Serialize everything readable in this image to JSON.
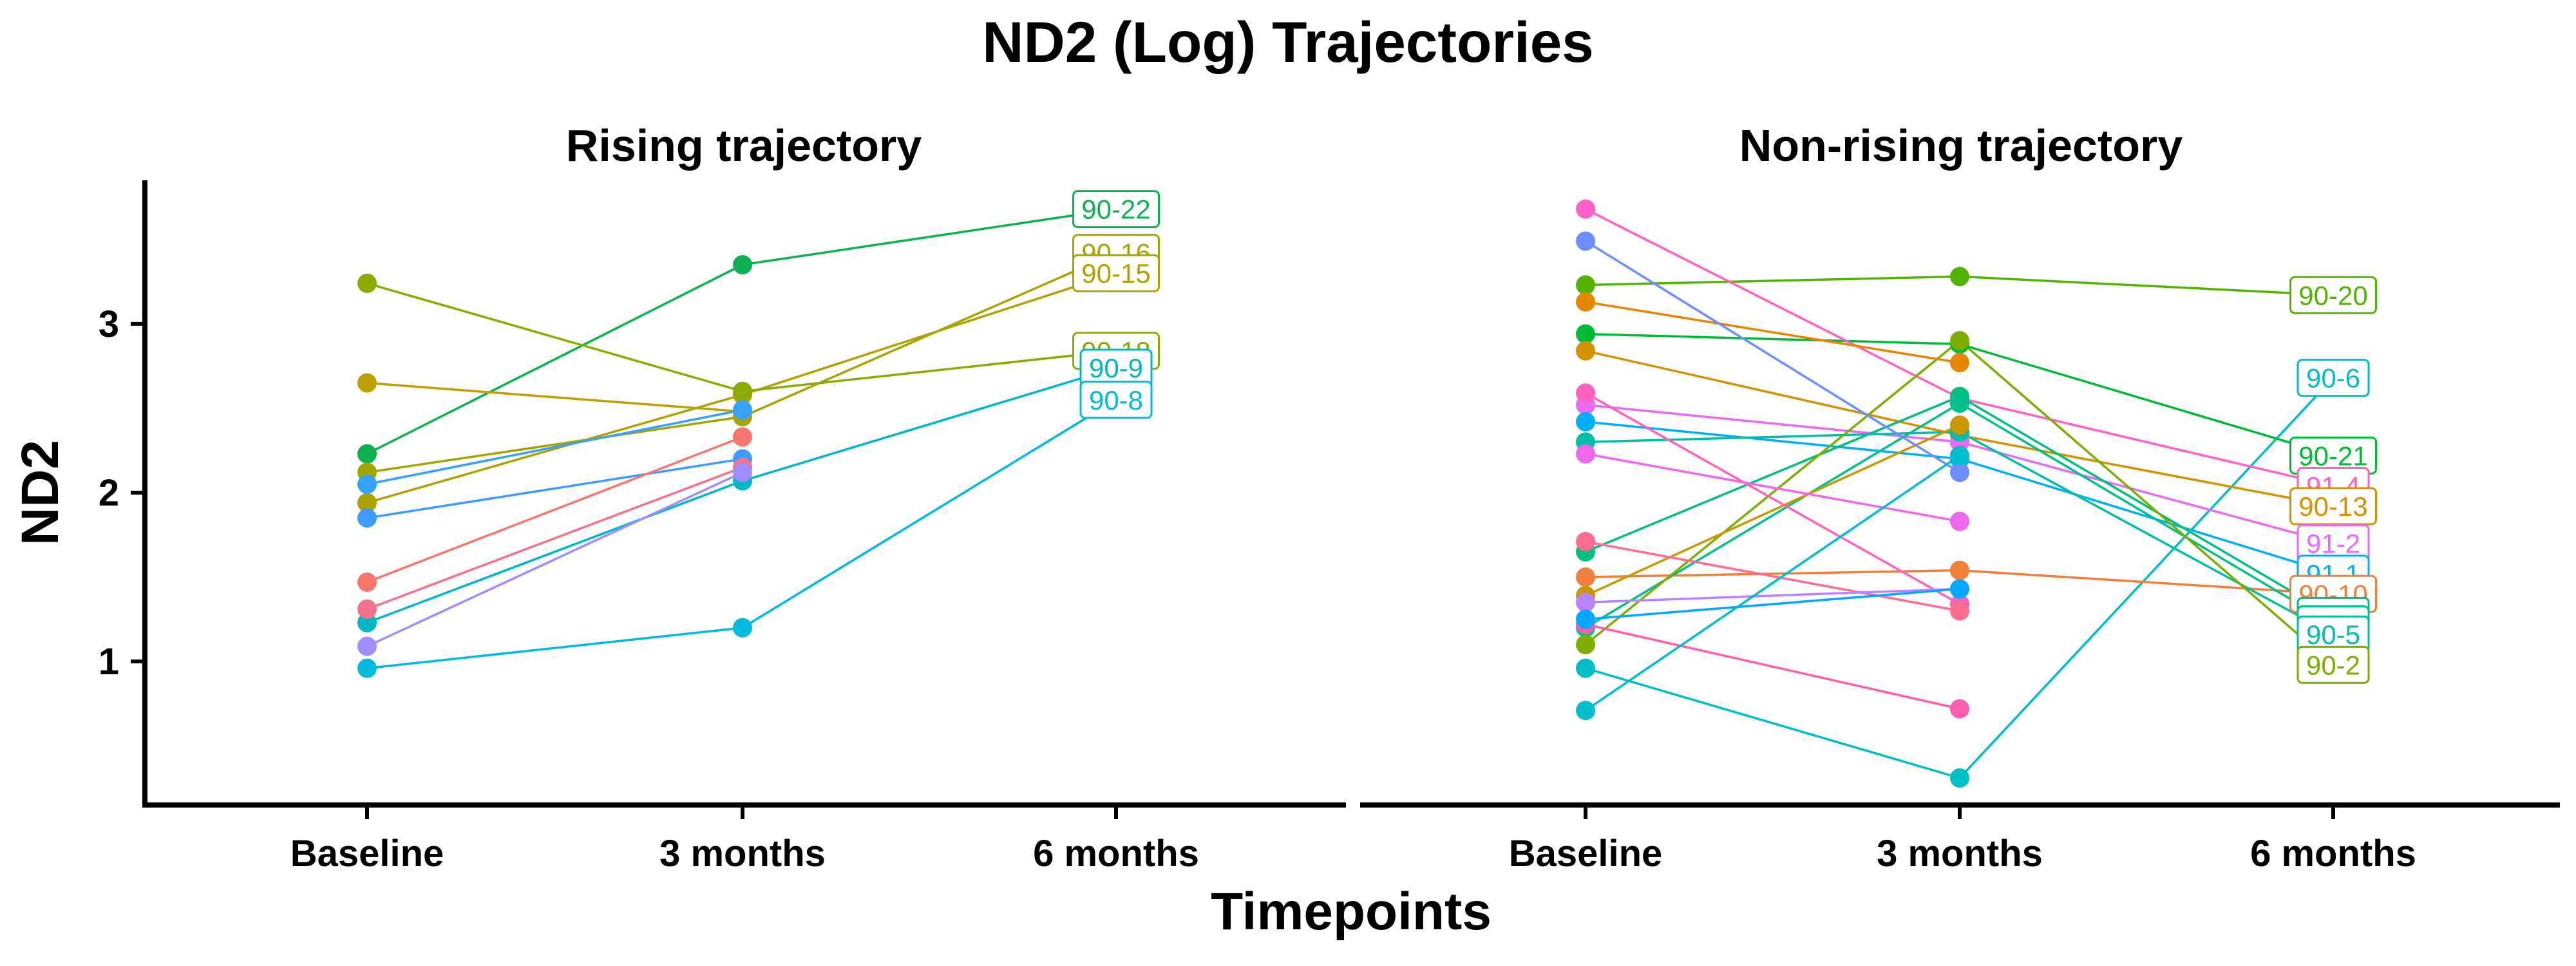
{
  "title": "ND2 (Log) Trajectories",
  "ylabel": "ND2",
  "xlabel": "Timepoints",
  "chart_data": [
    {
      "type": "line",
      "title": "Rising trajectory",
      "x": [
        "Baseline",
        "3 months",
        "6 months"
      ],
      "ylim": [
        0.15,
        3.85
      ],
      "yticks": [
        1,
        2,
        3
      ],
      "grid": false,
      "series": [
        {
          "name": "90-22",
          "color": "#0CB252",
          "values": [
            2.23,
            3.35,
            3.68
          ]
        },
        {
          "name": "90-16",
          "color": "#A3A500",
          "values": [
            2.12,
            2.45,
            3.42
          ]
        },
        {
          "name": "90-15",
          "color": "#AEA200",
          "values": [
            1.94,
            2.58,
            3.3
          ]
        },
        {
          "name": "90-18",
          "color": "#8BAB00",
          "values": [
            3.24,
            2.6,
            2.84
          ]
        },
        {
          "name": "90-9",
          "color": "#00B7C4",
          "values": [
            1.23,
            2.07,
            2.74
          ]
        },
        {
          "name": "90-8",
          "color": "#00BBDB",
          "values": [
            0.96,
            1.2,
            2.55
          ]
        },
        {
          "name": null,
          "color": "#BFA000",
          "values": [
            2.65,
            2.48,
            null
          ]
        },
        {
          "name": null,
          "color": "#35A2FF",
          "values": [
            2.05,
            2.49,
            null
          ]
        },
        {
          "name": null,
          "color": "#3D9BFF",
          "values": [
            1.85,
            2.2,
            null
          ]
        },
        {
          "name": null,
          "color": "#F8766D",
          "values": [
            1.47,
            2.33,
            null
          ]
        },
        {
          "name": null,
          "color": "#F4728B",
          "values": [
            1.31,
            2.15,
            null
          ]
        },
        {
          "name": null,
          "color": "#9F8CFF",
          "values": [
            1.09,
            2.12,
            null
          ]
        }
      ]
    },
    {
      "type": "line",
      "title": "Non-rising trajectory",
      "x": [
        "Baseline",
        "3 months",
        "6 months"
      ],
      "ylim": [
        0.15,
        3.85
      ],
      "yticks": [
        1,
        2,
        3
      ],
      "grid": false,
      "series": [
        {
          "name": "90-20",
          "color": "#53B400",
          "values": [
            3.23,
            3.28,
            3.17
          ]
        },
        {
          "name": "90-6",
          "color": "#00BFC4",
          "values": [
            0.96,
            0.31,
            2.68
          ]
        },
        {
          "name": "90-21",
          "color": "#00BA38",
          "values": [
            2.94,
            2.88,
            2.22
          ]
        },
        {
          "name": "91-4",
          "color": "#FF61C9",
          "values": [
            3.68,
            2.56,
            2.04
          ]
        },
        {
          "name": "90-13",
          "color": "#D39200",
          "values": [
            2.84,
            2.34,
            1.92
          ]
        },
        {
          "name": "91-2",
          "color": "#E76BF3",
          "values": [
            2.52,
            2.3,
            1.7
          ]
        },
        {
          "name": "91-1",
          "color": "#00B0F6",
          "values": [
            2.42,
            2.2,
            1.52
          ]
        },
        {
          "name": "90-10",
          "color": "#F07F3A",
          "values": [
            1.5,
            1.54,
            1.4
          ]
        },
        {
          "name": "90-3",
          "color": "#00BF7D",
          "values": [
            1.65,
            2.57,
            1.27
          ]
        },
        {
          "name": "90-4",
          "color": "#00C08B",
          "values": [
            1.2,
            2.53,
            1.22
          ]
        },
        {
          "name": "90-5",
          "color": "#00BFA8",
          "values": [
            2.3,
            2.36,
            1.16
          ]
        },
        {
          "name": "90-2",
          "color": "#7CAE00",
          "values": [
            1.1,
            2.9,
            0.98
          ]
        },
        {
          "name": null,
          "color": "#E58700",
          "values": [
            3.13,
            2.77,
            null
          ]
        },
        {
          "name": null,
          "color": "#C99800",
          "values": [
            1.39,
            2.4,
            null
          ]
        },
        {
          "name": null,
          "color": "#6C8EFF",
          "values": [
            3.49,
            2.12,
            null
          ]
        },
        {
          "name": null,
          "color": "#FF62BC",
          "values": [
            2.59,
            1.34,
            null
          ]
        },
        {
          "name": null,
          "color": "#EF67EB",
          "values": [
            2.23,
            1.83,
            null
          ]
        },
        {
          "name": null,
          "color": "#FF6C91",
          "values": [
            1.71,
            1.3,
            null
          ]
        },
        {
          "name": null,
          "color": "#FF5EAF",
          "values": [
            1.22,
            0.72,
            null
          ]
        },
        {
          "name": null,
          "color": "#B983FF",
          "values": [
            1.35,
            1.43,
            null
          ]
        },
        {
          "name": null,
          "color": "#00A9FF",
          "values": [
            1.25,
            1.43,
            null
          ]
        },
        {
          "name": null,
          "color": "#00BECB",
          "values": [
            0.71,
            2.22,
            null
          ]
        }
      ]
    }
  ]
}
